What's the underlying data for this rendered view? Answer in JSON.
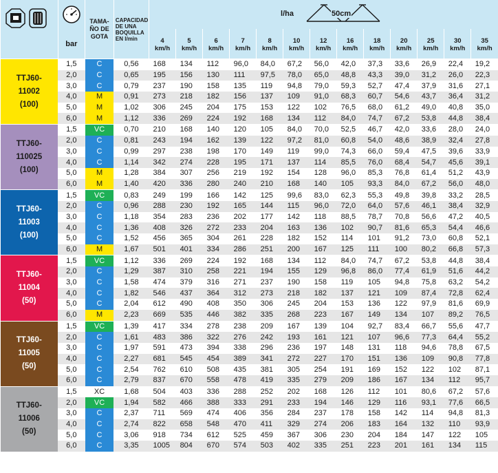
{
  "header": {
    "icons": [
      "nozzle-icon",
      "nozzle-body-icon",
      "pressure-gauge-icon",
      "spray-fan-icon"
    ],
    "bar_label": "bar",
    "drop_size_label": [
      "TAMA-",
      "ÑO DE",
      "GOTA"
    ],
    "capacity_label": [
      "CAPACIDAD",
      "DE UNA",
      "BOQUILLA",
      "EN l/min"
    ],
    "lha_label": "l/ha",
    "spacing_label": "50cm",
    "speeds": [
      {
        "speed": "4",
        "unit": "km/h"
      },
      {
        "speed": "5",
        "unit": "km/h"
      },
      {
        "speed": "6",
        "unit": "km/h"
      },
      {
        "speed": "7",
        "unit": "km/h"
      },
      {
        "speed": "8",
        "unit": "km/h"
      },
      {
        "speed": "10",
        "unit": "km/h"
      },
      {
        "speed": "12",
        "unit": "km/h"
      },
      {
        "speed": "16",
        "unit": "km/h"
      },
      {
        "speed": "18",
        "unit": "km/h"
      },
      {
        "speed": "20",
        "unit": "km/h"
      },
      {
        "speed": "25",
        "unit": "km/h"
      },
      {
        "speed": "30",
        "unit": "km/h"
      },
      {
        "speed": "35",
        "unit": "km/h"
      }
    ]
  },
  "drop_colors": {
    "M": "#ffe600",
    "C": "#2a8ad6",
    "VC": "#1eb056",
    "XC": "#ffffff"
  },
  "groups": [
    {
      "name": [
        "TTJ60-",
        "11002",
        "(100)"
      ],
      "color": "#ffe600",
      "text_color": "#1a1a1a",
      "rows": [
        [
          "1,5",
          "C",
          "0,56",
          "168",
          "134",
          "112",
          "96,0",
          "84,0",
          "67,2",
          "56,0",
          "42,0",
          "37,3",
          "33,6",
          "26,9",
          "22,4",
          "19,2"
        ],
        [
          "2,0",
          "C",
          "0,65",
          "195",
          "156",
          "130",
          "111",
          "97,5",
          "78,0",
          "65,0",
          "48,8",
          "43,3",
          "39,0",
          "31,2",
          "26,0",
          "22,3"
        ],
        [
          "3,0",
          "C",
          "0,79",
          "237",
          "190",
          "158",
          "135",
          "119",
          "94,8",
          "79,0",
          "59,3",
          "52,7",
          "47,4",
          "37,9",
          "31,6",
          "27,1"
        ],
        [
          "4,0",
          "M",
          "0,91",
          "273",
          "218",
          "182",
          "156",
          "137",
          "109",
          "91,0",
          "68,3",
          "60,7",
          "54,6",
          "43,7",
          "36,4",
          "31,2"
        ],
        [
          "5,0",
          "M",
          "1,02",
          "306",
          "245",
          "204",
          "175",
          "153",
          "122",
          "102",
          "76,5",
          "68,0",
          "61,2",
          "49,0",
          "40,8",
          "35,0"
        ],
        [
          "6,0",
          "M",
          "1,12",
          "336",
          "269",
          "224",
          "192",
          "168",
          "134",
          "112",
          "84,0",
          "74,7",
          "67,2",
          "53,8",
          "44,8",
          "38,4"
        ]
      ]
    },
    {
      "name": [
        "TTJ60-",
        "110025",
        "(100)"
      ],
      "color": "#a58fbd",
      "text_color": "#1a1a1a",
      "rows": [
        [
          "1,5",
          "VC",
          "0,70",
          "210",
          "168",
          "140",
          "120",
          "105",
          "84,0",
          "70,0",
          "52,5",
          "46,7",
          "42,0",
          "33,6",
          "28,0",
          "24,0"
        ],
        [
          "2,0",
          "C",
          "0,81",
          "243",
          "194",
          "162",
          "139",
          "122",
          "97,2",
          "81,0",
          "60,8",
          "54,0",
          "48,6",
          "38,9",
          "32,4",
          "27,8"
        ],
        [
          "3,0",
          "C",
          "0,99",
          "297",
          "238",
          "198",
          "170",
          "149",
          "119",
          "99,0",
          "74,3",
          "66,0",
          "59,4",
          "47,5",
          "39,6",
          "33,9"
        ],
        [
          "4,0",
          "C",
          "1,14",
          "342",
          "274",
          "228",
          "195",
          "171",
          "137",
          "114",
          "85,5",
          "76,0",
          "68,4",
          "54,7",
          "45,6",
          "39,1"
        ],
        [
          "5,0",
          "M",
          "1,28",
          "384",
          "307",
          "256",
          "219",
          "192",
          "154",
          "128",
          "96,0",
          "85,3",
          "76,8",
          "61,4",
          "51,2",
          "43,9"
        ],
        [
          "6,0",
          "M",
          "1,40",
          "420",
          "336",
          "280",
          "240",
          "210",
          "168",
          "140",
          "105",
          "93,3",
          "84,0",
          "67,2",
          "56,0",
          "48,0"
        ]
      ]
    },
    {
      "name": [
        "TTJ60-",
        "11003",
        "(100)"
      ],
      "color": "#0d64ad",
      "text_color": "#ffffff",
      "rows": [
        [
          "1,5",
          "VC",
          "0,83",
          "249",
          "199",
          "166",
          "142",
          "125",
          "99,6",
          "83,0",
          "62,3",
          "55,3",
          "49,8",
          "39,8",
          "33,2",
          "28,5"
        ],
        [
          "2,0",
          "C",
          "0,96",
          "288",
          "230",
          "192",
          "165",
          "144",
          "115",
          "96,0",
          "72,0",
          "64,0",
          "57,6",
          "46,1",
          "38,4",
          "32,9"
        ],
        [
          "3,0",
          "C",
          "1,18",
          "354",
          "283",
          "236",
          "202",
          "177",
          "142",
          "118",
          "88,5",
          "78,7",
          "70,8",
          "56,6",
          "47,2",
          "40,5"
        ],
        [
          "4,0",
          "C",
          "1,36",
          "408",
          "326",
          "272",
          "233",
          "204",
          "163",
          "136",
          "102",
          "90,7",
          "81,6",
          "65,3",
          "54,4",
          "46,6"
        ],
        [
          "5,0",
          "C",
          "1,52",
          "456",
          "365",
          "304",
          "261",
          "228",
          "182",
          "152",
          "114",
          "101",
          "91,2",
          "73,0",
          "60,8",
          "52,1"
        ],
        [
          "6,0",
          "M",
          "1,67",
          "501",
          "401",
          "334",
          "286",
          "251",
          "200",
          "167",
          "125",
          "111",
          "100",
          "80,2",
          "66,8",
          "57,3"
        ]
      ]
    },
    {
      "name": [
        "TTJ60-",
        "11004",
        "(50)"
      ],
      "color": "#e2174c",
      "text_color": "#ffffff",
      "rows": [
        [
          "1,5",
          "VC",
          "1,12",
          "336",
          "269",
          "224",
          "192",
          "168",
          "134",
          "112",
          "84,0",
          "74,7",
          "67,2",
          "53,8",
          "44,8",
          "38,4"
        ],
        [
          "2,0",
          "C",
          "1,29",
          "387",
          "310",
          "258",
          "221",
          "194",
          "155",
          "129",
          "96,8",
          "86,0",
          "77,4",
          "61,9",
          "51,6",
          "44,2"
        ],
        [
          "3,0",
          "C",
          "1,58",
          "474",
          "379",
          "316",
          "271",
          "237",
          "190",
          "158",
          "119",
          "105",
          "94,8",
          "75,8",
          "63,2",
          "54,2"
        ],
        [
          "4,0",
          "C",
          "1,82",
          "546",
          "437",
          "364",
          "312",
          "273",
          "218",
          "182",
          "137",
          "121",
          "109",
          "87,4",
          "72,8",
          "62,4"
        ],
        [
          "5,0",
          "C",
          "2,04",
          "612",
          "490",
          "408",
          "350",
          "306",
          "245",
          "204",
          "153",
          "136",
          "122",
          "97,9",
          "81,6",
          "69,9"
        ],
        [
          "6,0",
          "M",
          "2,23",
          "669",
          "535",
          "446",
          "382",
          "335",
          "268",
          "223",
          "167",
          "149",
          "134",
          "107",
          "89,2",
          "76,5"
        ]
      ]
    },
    {
      "name": [
        "TTJ60-",
        "11005",
        "(50)"
      ],
      "color": "#7a4a1f",
      "text_color": "#ffffff",
      "rows": [
        [
          "1,5",
          "VC",
          "1,39",
          "417",
          "334",
          "278",
          "238",
          "209",
          "167",
          "139",
          "104",
          "92,7",
          "83,4",
          "66,7",
          "55,6",
          "47,7"
        ],
        [
          "2,0",
          "C",
          "1,61",
          "483",
          "386",
          "322",
          "276",
          "242",
          "193",
          "161",
          "121",
          "107",
          "96,6",
          "77,3",
          "64,4",
          "55,2"
        ],
        [
          "3,0",
          "C",
          "1,97",
          "591",
          "473",
          "394",
          "338",
          "296",
          "236",
          "197",
          "148",
          "131",
          "118",
          "94,6",
          "78,8",
          "67,5"
        ],
        [
          "4,0",
          "C",
          "2,27",
          "681",
          "545",
          "454",
          "389",
          "341",
          "272",
          "227",
          "170",
          "151",
          "136",
          "109",
          "90,8",
          "77,8"
        ],
        [
          "5,0",
          "C",
          "2,54",
          "762",
          "610",
          "508",
          "435",
          "381",
          "305",
          "254",
          "191",
          "169",
          "152",
          "122",
          "102",
          "87,1"
        ],
        [
          "6,0",
          "C",
          "2,79",
          "837",
          "670",
          "558",
          "478",
          "419",
          "335",
          "279",
          "209",
          "186",
          "167",
          "134",
          "112",
          "95,7"
        ]
      ]
    },
    {
      "name": [
        "TTJ60-",
        "11006",
        "(50)"
      ],
      "color": "#a8a9ab",
      "text_color": "#1a1a1a",
      "rows": [
        [
          "1,5",
          "XC",
          "1,68",
          "504",
          "403",
          "336",
          "288",
          "252",
          "202",
          "168",
          "126",
          "112",
          "101",
          "80,6",
          "67,2",
          "57,6"
        ],
        [
          "2,0",
          "VC",
          "1,94",
          "582",
          "466",
          "388",
          "333",
          "291",
          "233",
          "194",
          "146",
          "129",
          "116",
          "93,1",
          "77,6",
          "66,5"
        ],
        [
          "3,0",
          "C",
          "2,37",
          "711",
          "569",
          "474",
          "406",
          "356",
          "284",
          "237",
          "178",
          "158",
          "142",
          "114",
          "94,8",
          "81,3"
        ],
        [
          "4,0",
          "C",
          "2,74",
          "822",
          "658",
          "548",
          "470",
          "411",
          "329",
          "274",
          "206",
          "183",
          "164",
          "132",
          "110",
          "93,9"
        ],
        [
          "5,0",
          "C",
          "3,06",
          "918",
          "734",
          "612",
          "525",
          "459",
          "367",
          "306",
          "230",
          "204",
          "184",
          "147",
          "122",
          "105"
        ],
        [
          "6,0",
          "C",
          "3,35",
          "1005",
          "804",
          "670",
          "574",
          "503",
          "402",
          "335",
          "251",
          "223",
          "201",
          "161",
          "134",
          "115"
        ]
      ]
    }
  ]
}
